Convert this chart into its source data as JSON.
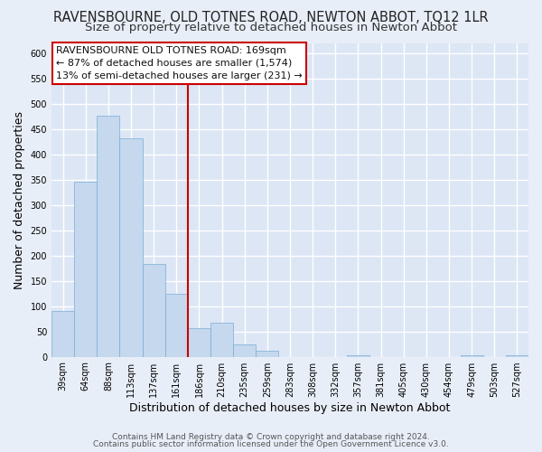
{
  "title": "RAVENSBOURNE, OLD TOTNES ROAD, NEWTON ABBOT, TQ12 1LR",
  "subtitle": "Size of property relative to detached houses in Newton Abbot",
  "xlabel": "Distribution of detached houses by size in Newton Abbot",
  "ylabel": "Number of detached properties",
  "bar_labels": [
    "39sqm",
    "64sqm",
    "88sqm",
    "113sqm",
    "137sqm",
    "161sqm",
    "186sqm",
    "210sqm",
    "235sqm",
    "259sqm",
    "283sqm",
    "308sqm",
    "332sqm",
    "357sqm",
    "381sqm",
    "405sqm",
    "430sqm",
    "454sqm",
    "479sqm",
    "503sqm",
    "527sqm"
  ],
  "bar_values": [
    90,
    345,
    477,
    432,
    183,
    125,
    57,
    68,
    25,
    12,
    0,
    0,
    0,
    2,
    0,
    0,
    0,
    0,
    3,
    0,
    3
  ],
  "bar_color": "#c5d8ee",
  "bar_edge_color": "#7aadd4",
  "marker_index": 5,
  "marker_line_color": "#cc0000",
  "ylim": [
    0,
    620
  ],
  "yticks": [
    0,
    50,
    100,
    150,
    200,
    250,
    300,
    350,
    400,
    450,
    500,
    550,
    600
  ],
  "annotation_title": "RAVENSBOURNE OLD TOTNES ROAD: 169sqm",
  "annotation_line1": "← 87% of detached houses are smaller (1,574)",
  "annotation_line2": "13% of semi-detached houses are larger (231) →",
  "footer1": "Contains HM Land Registry data © Crown copyright and database right 2024.",
  "footer2": "Contains public sector information licensed under the Open Government Licence v3.0.",
  "bg_color": "#e8eef8",
  "plot_bg_color": "#dce6f5",
  "grid_color": "#ffffff",
  "title_fontsize": 10.5,
  "subtitle_fontsize": 9.5,
  "label_fontsize": 9,
  "tick_fontsize": 7,
  "footer_fontsize": 6.5,
  "annotation_fontsize": 8
}
